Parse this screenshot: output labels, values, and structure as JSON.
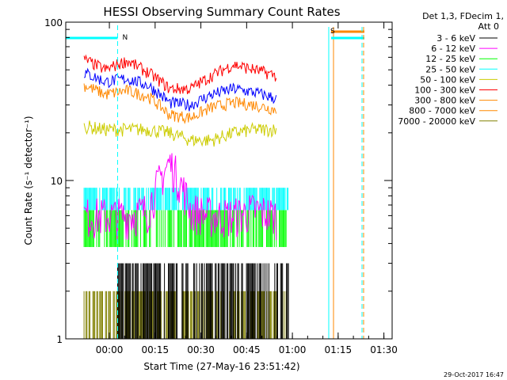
{
  "chart_data": {
    "type": "line",
    "title": "HESSI Observing Summary Count Rates",
    "xlabel": "Start Time (27-May-16 23:51:42)",
    "ylabel": "Count Rate (s⁻¹ detector⁻¹)",
    "yscale": "log",
    "ylim": [
      1,
      100
    ],
    "xlim_minutes_after_start": [
      -6,
      101
    ],
    "x_ticks": [
      {
        "label": "00:00",
        "min": 8.3
      },
      {
        "label": "00:15",
        "min": 23.3
      },
      {
        "label": "00:30",
        "min": 38.3
      },
      {
        "label": "00:45",
        "min": 53.3
      },
      {
        "label": "01:00",
        "min": 68.3
      },
      {
        "label": "01:15",
        "min": 83.3
      },
      {
        "label": "01:30",
        "min": 98.3
      }
    ],
    "y_ticks": [
      {
        "label": "1",
        "value": 1
      },
      {
        "label": "10",
        "value": 10
      },
      {
        "label": "100",
        "value": 100
      }
    ],
    "legend_header": [
      "Det 1,3, FDecim 1,",
      "Att 0"
    ],
    "legend_position": "right",
    "series": [
      {
        "name": "3 - 6 keV",
        "color": "#000000",
        "values": [
          2,
          2,
          1.8,
          2.2,
          2,
          2.5,
          2.2,
          2,
          2.3,
          2.2
        ]
      },
      {
        "name": "6 - 12 keV",
        "color": "#ff00ff",
        "values": [
          6,
          6,
          6,
          6.5,
          13,
          6.5,
          6,
          6,
          6.5,
          6
        ]
      },
      {
        "name": "12 - 25 keV",
        "color": "#00ff00",
        "values": [
          6,
          5.5,
          5,
          5,
          5,
          4.5,
          4.5,
          4.5,
          5,
          5
        ]
      },
      {
        "name": "25 - 50 keV",
        "color": "#00ffff",
        "values": [
          7.5,
          7.5,
          7.5,
          7.5,
          7.5,
          7.5,
          7.5,
          7.5,
          7.5,
          7.5
        ]
      },
      {
        "name": "50 - 100 keV",
        "color": "#cccc00",
        "values": [
          22,
          21,
          21,
          21,
          20,
          18,
          18,
          20,
          21,
          21
        ]
      },
      {
        "name": "100 - 300 keV",
        "color": "#ff0000",
        "values": [
          58,
          50,
          57,
          48,
          38,
          38,
          46,
          54,
          50,
          46
        ]
      },
      {
        "name": "300 - 800 keV",
        "color": "#ff8800",
        "values": [
          40,
          35,
          37,
          34,
          26,
          25,
          29,
          31,
          30,
          28
        ]
      },
      {
        "name": "800 - 7000 keV",
        "color": "#ff8800",
        "values": [
          40,
          35,
          37,
          34,
          26,
          25,
          29,
          31,
          30,
          28
        ]
      },
      {
        "name": "7000 - 20000 keV",
        "color": "#808000",
        "values": [
          1.5,
          1.5,
          1.5,
          1.5,
          1.5,
          1.5,
          1.5,
          1.5,
          1.5,
          1.5
        ]
      }
    ],
    "blue_band_values": [
      48,
      42,
      44,
      40,
      31,
      30,
      35,
      38,
      36,
      33
    ],
    "series_x_minutes": [
      0,
      7,
      14,
      21,
      28,
      35,
      42,
      49,
      56,
      63
    ],
    "markers": [
      {
        "label": "N",
        "color": "#00ffff",
        "min": 11
      },
      {
        "label": "S",
        "color": "#ff8800",
        "min": 81
      }
    ],
    "colors": {
      "frame": "#000000",
      "background": "#ffffff",
      "accent": "#00ffff"
    }
  },
  "footer": {
    "timestamp": "29-Oct-2017 16:47"
  }
}
